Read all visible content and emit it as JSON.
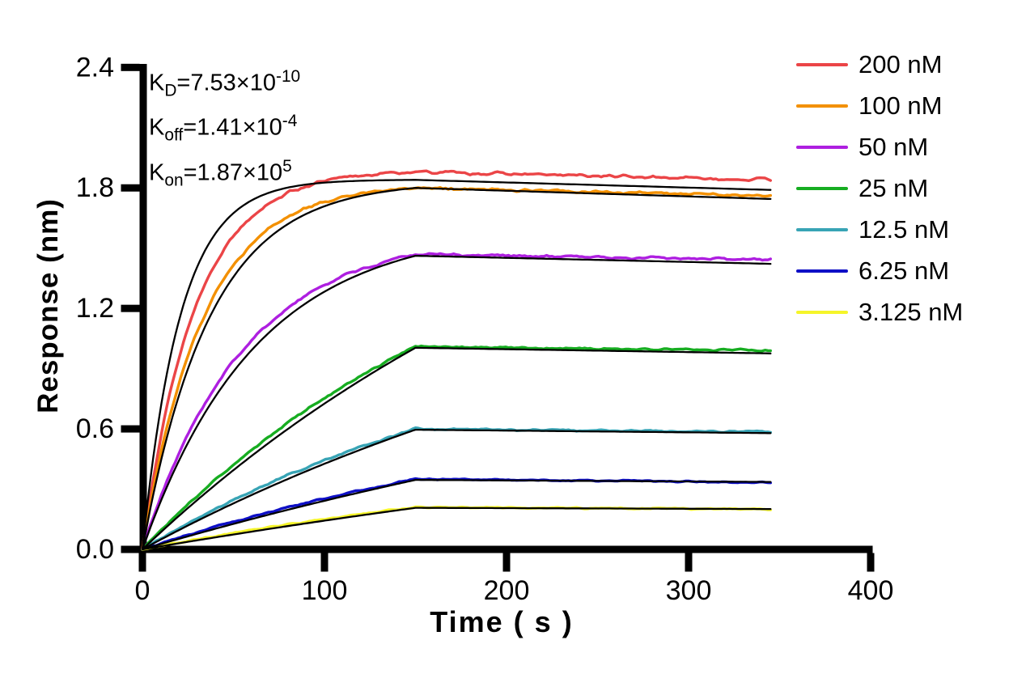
{
  "chart_data": {
    "type": "line",
    "title": "",
    "xlabel": "Time ( s )",
    "ylabel": "Response (nm)",
    "xlim": [
      0,
      400
    ],
    "ylim": [
      0,
      2.4
    ],
    "xtick_values": [
      0,
      100,
      200,
      300,
      400
    ],
    "xtick_labels": [
      "0",
      "100",
      "200",
      "300",
      "400"
    ],
    "ytick_values": [
      0,
      0.6,
      1.2,
      1.8,
      2.4
    ],
    "ytick_labels": [
      "0.0",
      "0.6",
      "1.2",
      "1.8",
      "2.4"
    ],
    "grid": false,
    "legend_position": "right",
    "axis_color": "#000000",
    "fit_line_color": "#000000",
    "annotations": [
      {
        "base": "K",
        "sub": "D",
        "eq": "=7.53×10",
        "sup": "-10",
        "text": "KD=7.53×10-10"
      },
      {
        "base": "K",
        "sub": "off",
        "eq": "=1.41×10",
        "sup": "-4",
        "text": "Koff=1.41×10-4"
      },
      {
        "base": "K",
        "sub": "on",
        "eq": "=1.87×10",
        "sup": "5",
        "text": "Kon=1.87×105"
      }
    ],
    "phases": {
      "association_s": [
        0,
        150
      ],
      "dissociation_end_s": 345
    },
    "series": [
      {
        "label": "200 nM",
        "concentration_nM": 200,
        "color": "#EB4547",
        "peak_nm": 1.88,
        "end_nm": 1.84,
        "k_obs": 0.035,
        "fit": {
          "k_obs": 0.048,
          "peak_nm": 1.84,
          "end_nm": 1.79
        }
      },
      {
        "label": "100 nM",
        "concentration_nM": 100,
        "color": "#F39000",
        "peak_nm": 1.8,
        "end_nm": 1.76,
        "k_obs": 0.03,
        "fit": {
          "k_obs": 0.027,
          "peak_nm": 1.8,
          "end_nm": 1.745
        }
      },
      {
        "label": "50 nM",
        "concentration_nM": 50,
        "color": "#AE1FE0",
        "peak_nm": 1.47,
        "end_nm": 1.44,
        "k_obs": 0.018,
        "fit": {
          "k_obs": 0.016,
          "peak_nm": 1.462,
          "end_nm": 1.422
        }
      },
      {
        "label": "25 nM",
        "concentration_nM": 25,
        "color": "#17AD21",
        "peak_nm": 1.01,
        "end_nm": 0.99,
        "k_obs": 0.005,
        "fit": {
          "k_obs": 0.0035,
          "peak_nm": 1.004,
          "end_nm": 0.976
        }
      },
      {
        "label": "12.5 nM",
        "concentration_nM": 12.5,
        "color": "#38A4B5",
        "peak_nm": 0.6,
        "end_nm": 0.585,
        "k_obs": 0.0045,
        "fit": {
          "k_obs": 0.003,
          "peak_nm": 0.596,
          "end_nm": 0.579
        }
      },
      {
        "label": "6.25 nM",
        "concentration_nM": 6.25,
        "color": "#0E0FC6",
        "peak_nm": 0.35,
        "end_nm": 0.335,
        "k_obs": 0.0035,
        "fit": {
          "k_obs": 0.002,
          "peak_nm": 0.346,
          "end_nm": 0.336
        }
      },
      {
        "label": "3.125 nM",
        "concentration_nM": 3.125,
        "color": "#F5F52A",
        "peak_nm": 0.21,
        "end_nm": 0.2,
        "k_obs": 0.003,
        "fit": {
          "k_obs": 0.0015,
          "peak_nm": 0.207,
          "end_nm": 0.201
        }
      }
    ]
  }
}
